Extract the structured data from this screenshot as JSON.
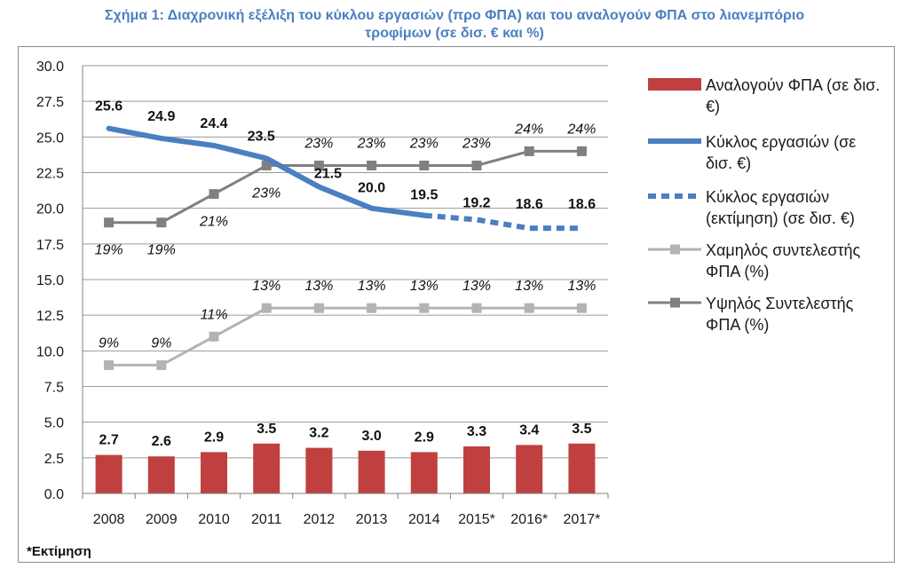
{
  "title_line1": "Σχήμα 1: Διαχρονική εξέλιξη του κύκλου εργασιών (προ ΦΠΑ) και του αναλογούν ΦΠΑ στο λιανεμπόριο",
  "title_line2": "τροφίμων (σε δισ. € και %)",
  "footnote": "*Εκτίμηση",
  "colors": {
    "bars": "#c0403f",
    "turnover": "#4a7fc1",
    "low_vat": "#b3b3b3",
    "high_vat": "#808080",
    "grid": "#9a9a9a"
  },
  "legend": [
    {
      "lines": [
        "Αναλογούν ΦΠΑ (σε δισ.",
        "€)"
      ],
      "kind": "bar",
      "color": "#c0403f"
    },
    {
      "lines": [
        "Κύκλος εργασιών  (σε",
        "δισ. €)"
      ],
      "kind": "line",
      "color": "#4a7fc1"
    },
    {
      "lines": [
        "Κύκλος εργασιών",
        "(εκτίμηση) (σε δισ. €)"
      ],
      "kind": "dash",
      "color": "#4a7fc1"
    },
    {
      "lines": [
        "Χαμηλός συντελεστής",
        "ΦΠΑ (%)"
      ],
      "kind": "marker",
      "color": "#b3b3b3"
    },
    {
      "lines": [
        "Υψηλός Συντελεστής",
        "ΦΠΑ (%)"
      ],
      "kind": "marker",
      "color": "#808080"
    }
  ],
  "chart_data": {
    "type": "bar",
    "categories": [
      "2008",
      "2009",
      "2010",
      "2011",
      "2012",
      "2013",
      "2014",
      "2015*",
      "2016*",
      "2017*"
    ],
    "ylim": [
      0,
      30
    ],
    "yticks": [
      "0.0",
      "2.5",
      "5.0",
      "7.5",
      "10.0",
      "12.5",
      "15.0",
      "17.5",
      "20.0",
      "22.5",
      "25.0",
      "27.5",
      "30.0"
    ],
    "grid": true,
    "legend_position": "right",
    "series": [
      {
        "name": "Αναλογούν ΦΠΑ (σε δισ. €)",
        "type": "bar",
        "values": [
          2.7,
          2.6,
          2.9,
          3.5,
          3.2,
          3.0,
          2.9,
          3.3,
          3.4,
          3.5
        ],
        "labels": [
          "2.7",
          "2.6",
          "2.9",
          "3.5",
          "3.2",
          "3.0",
          "2.9",
          "3.3",
          "3.4",
          "3.5"
        ]
      },
      {
        "name": "Κύκλος εργασιών  (σε δισ. €)",
        "type": "line",
        "values": [
          25.6,
          24.9,
          24.4,
          23.5,
          21.5,
          20.0,
          19.5,
          null,
          null,
          null
        ],
        "labels": [
          "25.6",
          "24.9",
          "24.4",
          "23.5",
          "21.5",
          "20.0",
          "19.5",
          "",
          "",
          ""
        ]
      },
      {
        "name": "Κύκλος εργασιών (εκτίμηση) (σε δισ. €)",
        "type": "line-dashed",
        "values": [
          null,
          null,
          null,
          null,
          null,
          null,
          19.5,
          19.2,
          18.6,
          18.6
        ],
        "labels": [
          "",
          "",
          "",
          "",
          "",
          "",
          "",
          "19.2",
          "18.6",
          "18.6"
        ]
      },
      {
        "name": "Χαμηλός συντελεστής ΦΠΑ (%)",
        "type": "line-marker",
        "values": [
          9,
          9,
          11,
          13,
          13,
          13,
          13,
          13,
          13,
          13
        ],
        "labels": [
          "9%",
          "9%",
          "11%",
          "13%",
          "13%",
          "13%",
          "13%",
          "13%",
          "13%",
          "13%"
        ]
      },
      {
        "name": "Υψηλός Συντελεστής ΦΠΑ (%)",
        "type": "line-marker",
        "values": [
          19,
          19,
          21,
          23,
          23,
          23,
          23,
          23,
          24,
          24
        ],
        "labels": [
          "19%",
          "19%",
          "21%",
          "23%",
          "23%",
          "23%",
          "23%",
          "23%",
          "24%",
          "24%"
        ]
      }
    ]
  }
}
